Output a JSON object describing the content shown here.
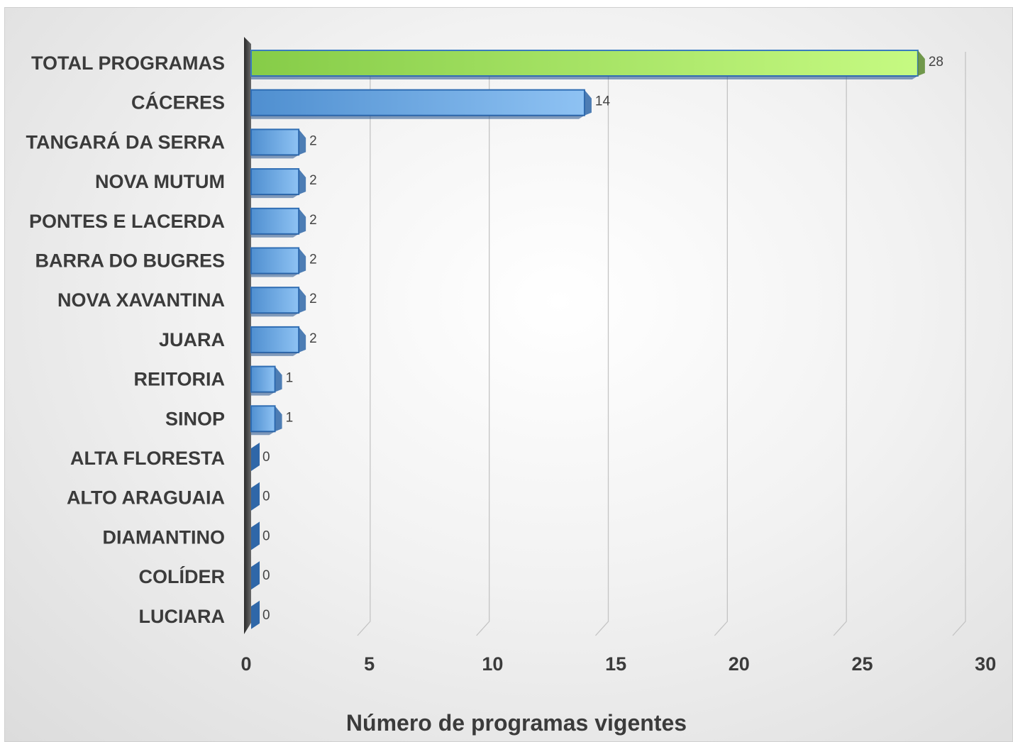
{
  "chart_data": {
    "type": "bar",
    "orientation": "horizontal",
    "style": "3d",
    "categories": [
      "TOTAL PROGRAMAS",
      "CÁCERES",
      "TANGARÁ DA SERRA",
      "NOVA MUTUM",
      "PONTES E LACERDA",
      "BARRA DO BUGRES",
      "NOVA XAVANTINA",
      "JUARA",
      "REITORIA",
      "SINOP",
      "ALTA FLORESTA",
      "ALTO ARAGUAIA",
      "DIAMANTINO",
      "COLÍDER",
      "LUCIARA"
    ],
    "values": [
      28,
      14,
      2,
      2,
      2,
      2,
      2,
      2,
      1,
      1,
      0,
      0,
      0,
      0,
      0
    ],
    "title": "",
    "xlabel": "Número de programas vigentes",
    "ylabel": "",
    "xlim": [
      0,
      30
    ],
    "xticks": [
      0,
      5,
      10,
      15,
      20,
      25,
      30
    ],
    "grid": true,
    "legend": "none",
    "data_labels": true,
    "colors": {
      "highlight": "#92d050",
      "default": "#5b9bd5"
    }
  }
}
